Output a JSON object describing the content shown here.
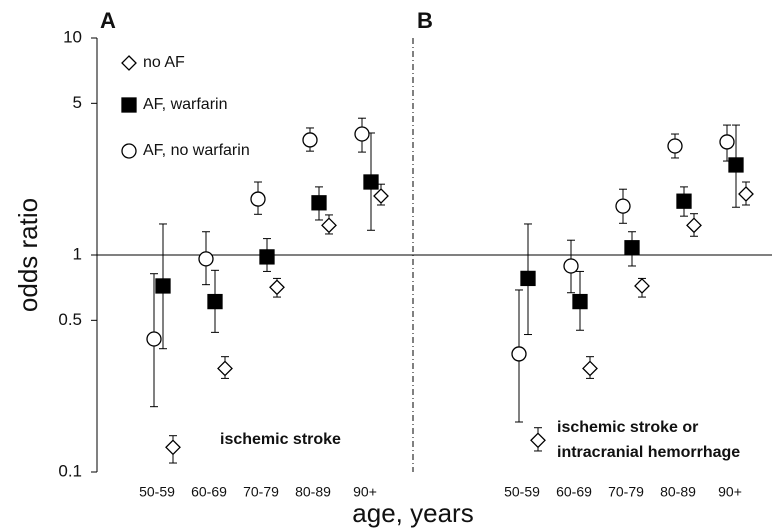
{
  "chart_data": {
    "type": "dot",
    "ylabel": "odds ratio",
    "xlabel": "age, years",
    "log_y": true,
    "ylim": [
      0.1,
      10
    ],
    "yticks": [
      0.1,
      0.5,
      1,
      5,
      10
    ],
    "series": [
      {
        "name": "no AF",
        "marker": "diamond",
        "color": "#ffffff"
      },
      {
        "name": "AF, warfarin",
        "marker": "square",
        "color": "#000000"
      },
      {
        "name": "AF, no warfarin",
        "marker": "circle",
        "color": "#ffffff"
      }
    ],
    "panels": [
      {
        "label": "A",
        "annotation": [
          "ischemic stroke"
        ],
        "categories": [
          "50-59",
          "60-69",
          "70-79",
          "80-89",
          "90+"
        ],
        "series": [
          {
            "values": [
              0.13,
              0.3,
              0.71,
              1.37,
              1.87
            ],
            "ci_low": [
              0.11,
              0.27,
              0.64,
              1.25,
              1.7
            ],
            "ci_high": [
              0.147,
              0.34,
              0.78,
              1.53,
              2.12
            ]
          },
          {
            "values": [
              0.72,
              0.61,
              0.98,
              1.74,
              2.17
            ],
            "ci_low": [
              0.37,
              0.44,
              0.84,
              1.45,
              1.3
            ],
            "ci_high": [
              1.39,
              0.85,
              1.19,
              2.06,
              3.65
            ]
          },
          {
            "values": [
              0.41,
              0.96,
              1.81,
              3.39,
              3.61
            ],
            "ci_low": [
              0.2,
              0.73,
              1.54,
              3.01,
              2.98
            ],
            "ci_high": [
              0.82,
              1.28,
              2.17,
              3.85,
              4.27
            ]
          }
        ]
      },
      {
        "label": "B",
        "annotation": [
          "ischemic stroke or",
          "intracranial hemorrhage"
        ],
        "categories": [
          "50-59",
          "60-69",
          "70-79",
          "80-89",
          "90+"
        ],
        "series": [
          {
            "values": [
              0.14,
              0.3,
              0.72,
              1.37,
              1.91
            ],
            "ci_low": [
              0.125,
              0.27,
              0.64,
              1.22,
              1.7
            ],
            "ci_high": [
              0.16,
              0.34,
              0.78,
              1.55,
              2.17
            ]
          },
          {
            "values": [
              0.78,
              0.61,
              1.08,
              1.77,
              2.6
            ],
            "ci_low": [
              0.43,
              0.45,
              0.89,
              1.51,
              1.66
            ],
            "ci_high": [
              1.39,
              0.84,
              1.28,
              2.06,
              3.97
            ]
          },
          {
            "values": [
              0.35,
              0.89,
              1.68,
              3.18,
              3.32
            ],
            "ci_low": [
              0.17,
              0.67,
              1.4,
              2.8,
              2.71
            ],
            "ci_high": [
              0.69,
              1.17,
              2.01,
              3.61,
              3.97
            ]
          }
        ]
      }
    ]
  }
}
